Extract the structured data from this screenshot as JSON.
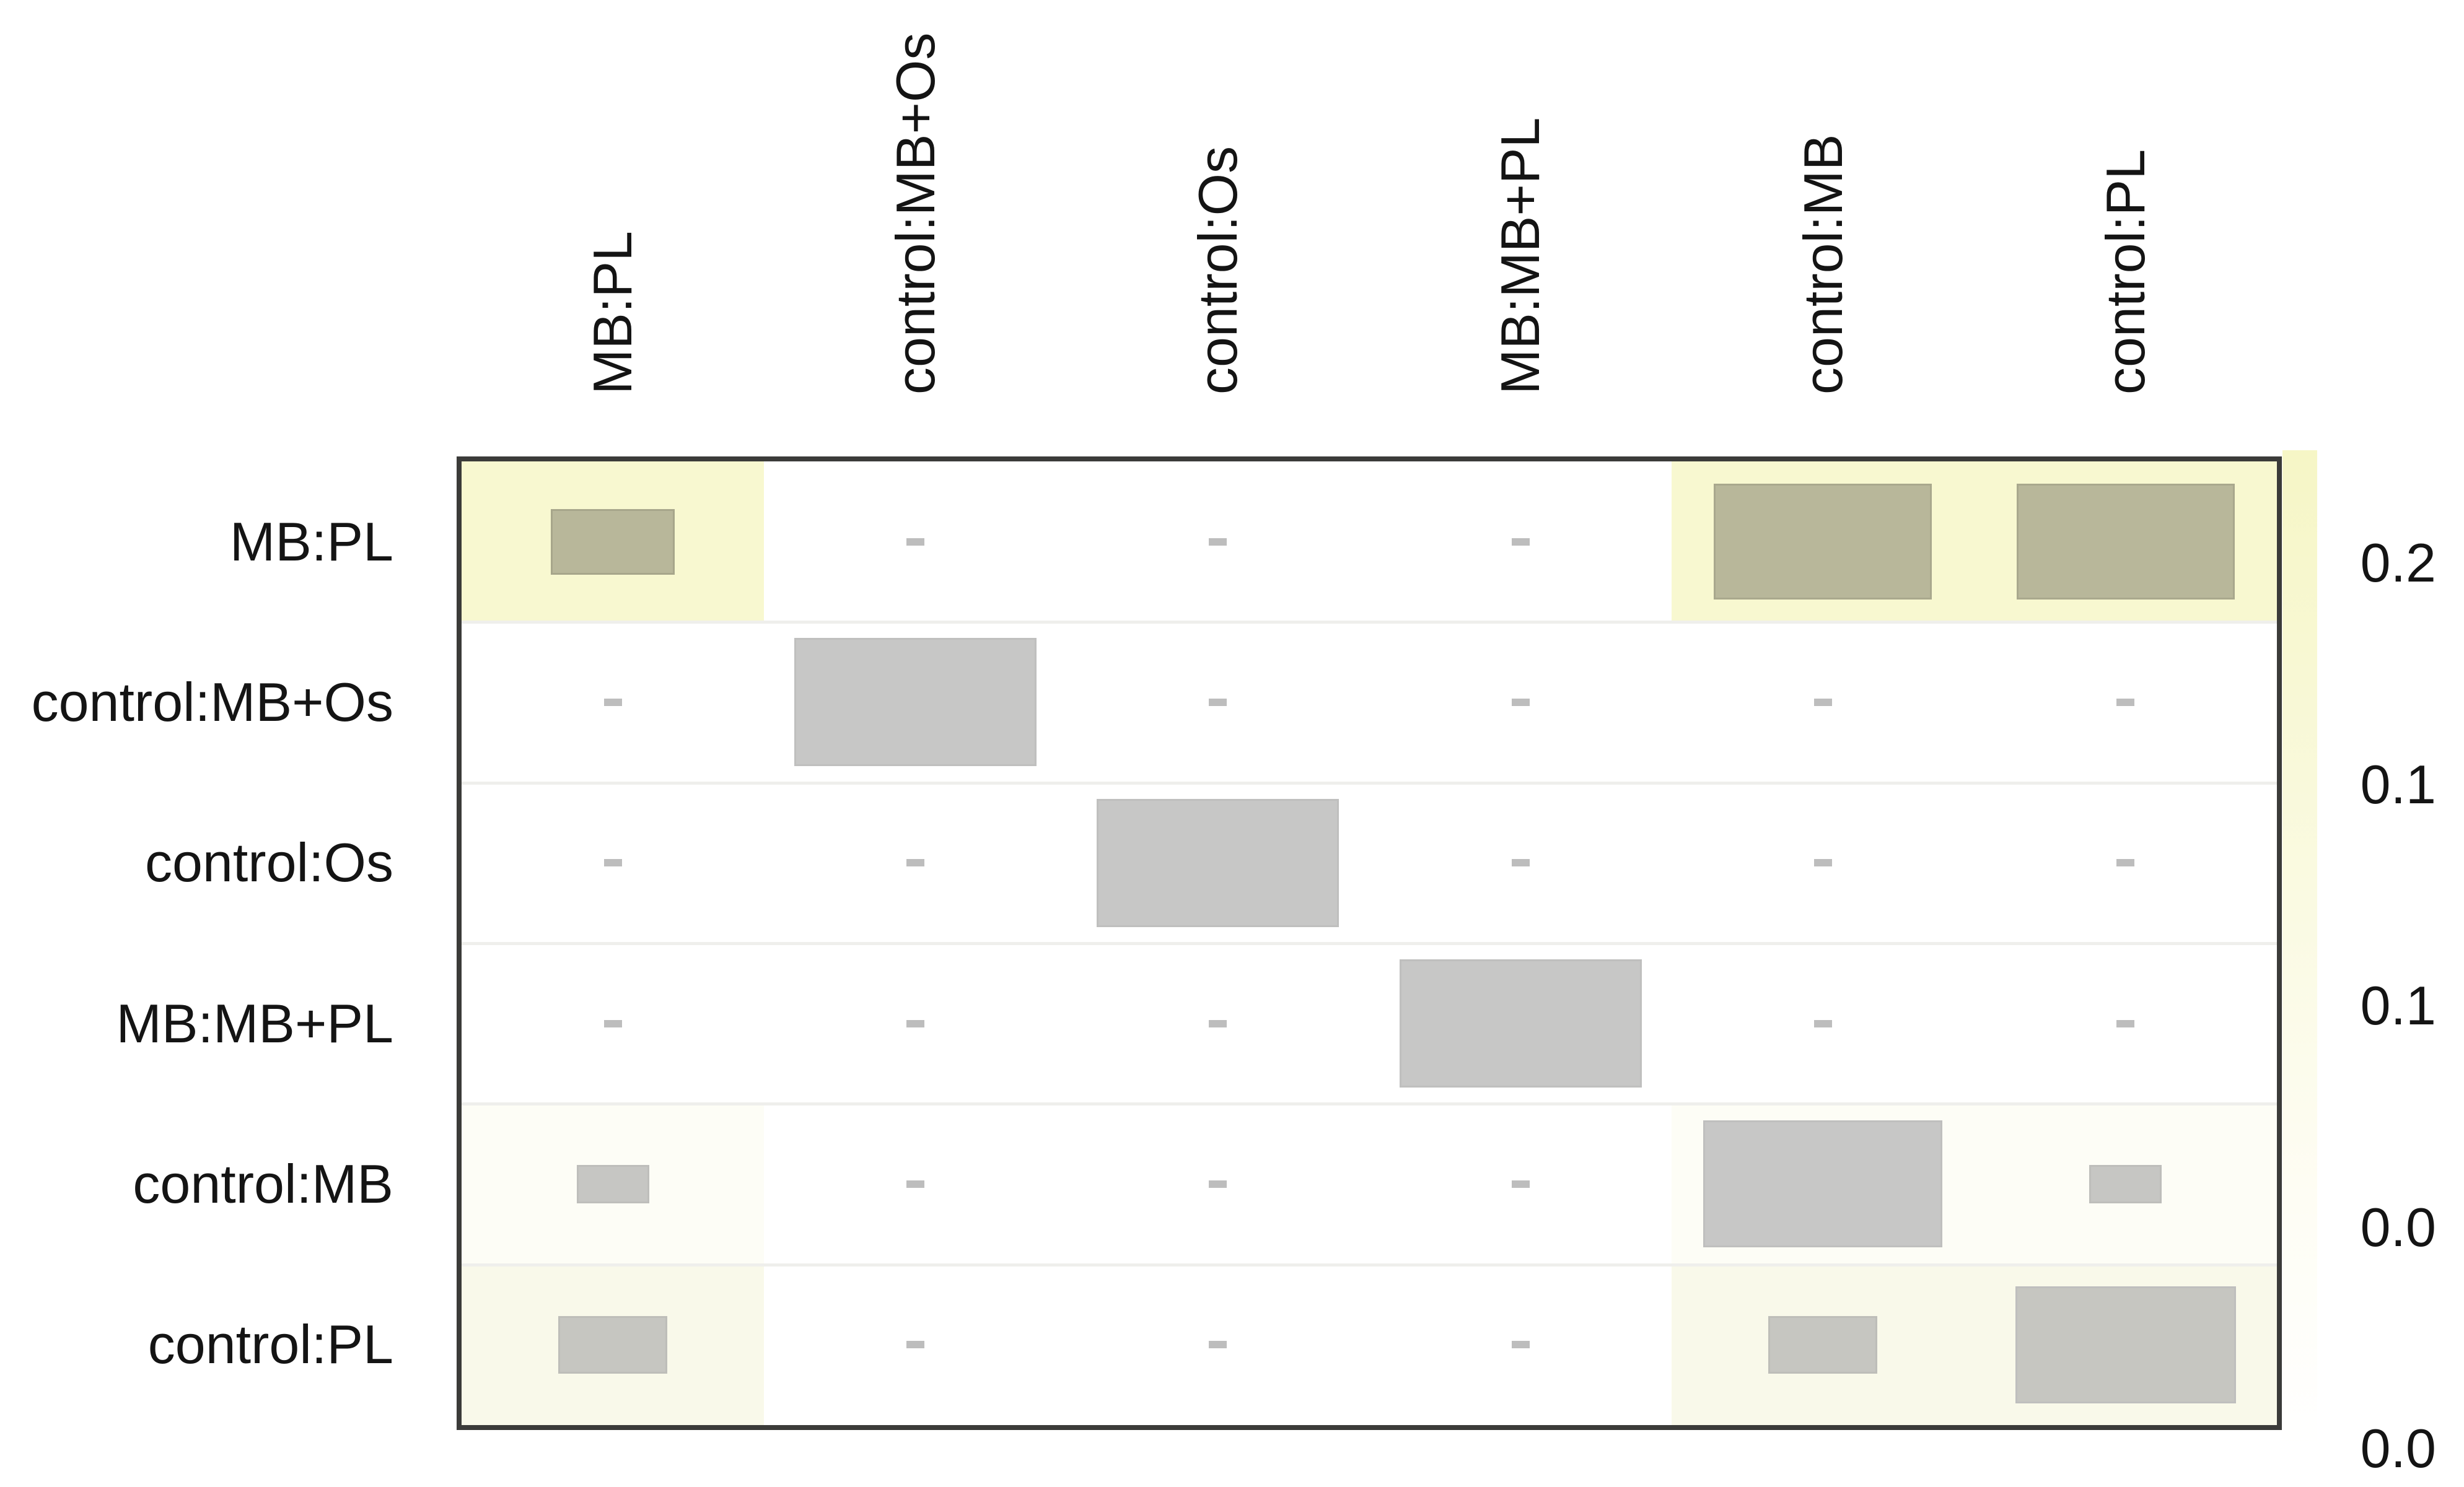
{
  "chart_data": {
    "type": "heatmap",
    "title": "",
    "rows": [
      "MB:PL",
      "control:MB+Os",
      "control:Os",
      "MB:MB+PL",
      "control:MB",
      "control:PL"
    ],
    "columns": [
      "MB:PL",
      "control:MB+Os",
      "control:Os",
      "MB:MB+PL",
      "control:MB",
      "control:PL"
    ],
    "cell_box_size_fraction": [
      [
        0.41,
        0.06,
        0.06,
        0.06,
        0.72,
        0.72
      ],
      [
        0.06,
        0.8,
        0.06,
        0.06,
        0.06,
        0.06
      ],
      [
        0.06,
        0.06,
        0.8,
        0.06,
        0.06,
        0.06
      ],
      [
        0.06,
        0.06,
        0.06,
        0.8,
        0.06,
        0.06
      ],
      [
        0.24,
        0.06,
        0.06,
        0.06,
        0.79,
        0.24
      ],
      [
        0.36,
        0.06,
        0.06,
        0.06,
        0.36,
        0.73
      ]
    ],
    "cell_background": [
      [
        "#f8f8d0",
        "#ffffff",
        "#ffffff",
        "#ffffff",
        "#f8f8d0",
        "#f8f8d0"
      ],
      [
        "#ffffff",
        "#ffffff",
        "#ffffff",
        "#ffffff",
        "#ffffff",
        "#ffffff"
      ],
      [
        "#ffffff",
        "#ffffff",
        "#ffffff",
        "#ffffff",
        "#ffffff",
        "#ffffff"
      ],
      [
        "#ffffff",
        "#ffffff",
        "#ffffff",
        "#ffffff",
        "#ffffff",
        "#ffffff"
      ],
      [
        "#fdfdf6",
        "#ffffff",
        "#ffffff",
        "#ffffff",
        "#fdfdf6",
        "#fdfdf6"
      ],
      [
        "#f9f9ea",
        "#ffffff",
        "#ffffff",
        "#ffffff",
        "#f9f9ea",
        "#f9f9ea"
      ]
    ],
    "cell_box_color": [
      [
        "#b8b79a",
        "#bdbdbd",
        "#bdbdbd",
        "#bdbdbd",
        "#b8b79a",
        "#b8b79a"
      ],
      [
        "#bdbdbd",
        "#c7c7c6",
        "#bdbdbd",
        "#bdbdbd",
        "#bdbdbd",
        "#bdbdbd"
      ],
      [
        "#bdbdbd",
        "#bdbdbd",
        "#c7c7c6",
        "#bdbdbd",
        "#bdbdbd",
        "#bdbdbd"
      ],
      [
        "#bdbdbd",
        "#bdbdbd",
        "#bdbdbd",
        "#c7c7c6",
        "#bdbdbd",
        "#bdbdbd"
      ],
      [
        "#c6c6c3",
        "#bdbdbd",
        "#bdbdbd",
        "#bdbdbd",
        "#c7c7c6",
        "#c6c6c3"
      ],
      [
        "#c6c6c1",
        "#bdbdbd",
        "#bdbdbd",
        "#bdbdbd",
        "#c6c6c1",
        "#c6c6c1"
      ]
    ],
    "cell_box_border_color": [
      [
        "#a7a68b",
        "#bdbdbd",
        "#bdbdbd",
        "#bdbdbd",
        "#a9a88d",
        "#a9a88d"
      ],
      [
        "#bdbdbd",
        "#bfbfbe",
        "#bdbdbd",
        "#bdbdbd",
        "#bdbdbd",
        "#bdbdbd"
      ],
      [
        "#bdbdbd",
        "#bdbdbd",
        "#bfbfbe",
        "#bdbdbd",
        "#bdbdbd",
        "#bdbdbd"
      ],
      [
        "#bdbdbd",
        "#bdbdbd",
        "#bdbdbd",
        "#bfbfbe",
        "#bdbdbd",
        "#bdbdbd"
      ],
      [
        "#bebebb",
        "#bdbdbd",
        "#bdbdbd",
        "#bdbdbd",
        "#bfbfbe",
        "#bebebb"
      ],
      [
        "#bebeb9",
        "#bdbdbd",
        "#bdbdbd",
        "#bdbdbd",
        "#bebeb9",
        "#bfbfbe"
      ]
    ],
    "colorkey": {
      "labels_top_to_bottom": [
        "0.2",
        "0.1",
        "0.1",
        "0.0",
        "0.0"
      ],
      "gradient_top_color": "#f6f6c6",
      "gradient_bottom_color": "#ffffff"
    },
    "layout_hints": {
      "legend_position": "right",
      "grid": "row-separators-only",
      "column_labels_rotated_degrees": 90
    }
  },
  "frame": {
    "border_color": "#3b3b39",
    "row_separator_color": "#efefec",
    "background": "#ffffff"
  }
}
